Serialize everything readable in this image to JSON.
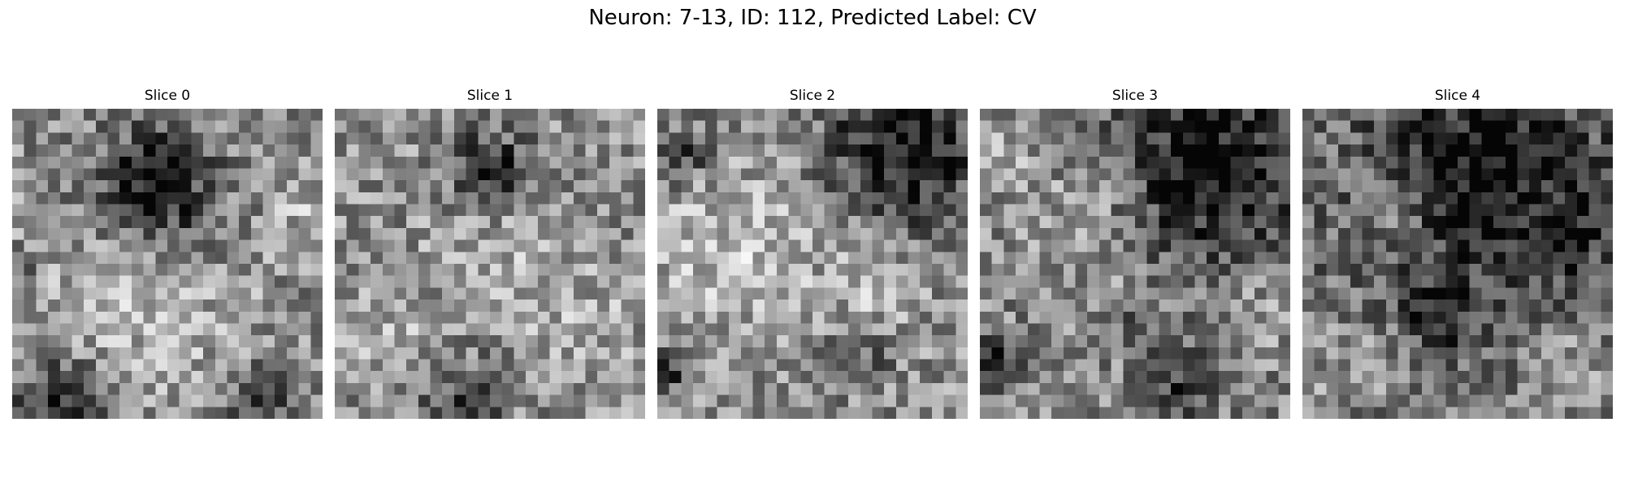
{
  "figure": {
    "title": "Neuron: 7-13, ID: 112, Predicted Label: CV"
  },
  "slices": [
    {
      "label": "Slice 0",
      "grid": 26,
      "dark_blobs": [
        [
          0.46,
          0.25,
          0.18,
          0.95
        ],
        [
          0.15,
          0.93,
          0.15,
          0.7
        ],
        [
          0.8,
          0.93,
          0.12,
          0.6
        ],
        [
          0.02,
          0.5,
          0.06,
          0.4
        ]
      ],
      "bright_blobs": [
        [
          0.2,
          0.65,
          0.25,
          0.25
        ],
        [
          0.6,
          0.7,
          0.25,
          0.2
        ],
        [
          0.95,
          0.3,
          0.1,
          0.3
        ]
      ],
      "base": 0.55,
      "seed": 11
    },
    {
      "label": "Slice 1",
      "grid": 26,
      "dark_blobs": [
        [
          0.5,
          0.2,
          0.13,
          0.8
        ],
        [
          0.4,
          0.95,
          0.15,
          0.5
        ]
      ],
      "bright_blobs": [
        [
          0.55,
          0.45,
          0.2,
          0.25
        ],
        [
          0.15,
          0.72,
          0.15,
          0.25
        ],
        [
          0.8,
          0.7,
          0.2,
          0.2
        ]
      ],
      "base": 0.56,
      "seed": 23
    },
    {
      "label": "Slice 2",
      "grid": 26,
      "dark_blobs": [
        [
          0.8,
          0.12,
          0.25,
          0.9
        ],
        [
          0.08,
          0.15,
          0.1,
          0.6
        ],
        [
          0.03,
          0.85,
          0.06,
          0.7
        ],
        [
          0.65,
          0.8,
          0.1,
          0.4
        ]
      ],
      "bright_blobs": [
        [
          0.25,
          0.45,
          0.3,
          0.35
        ],
        [
          0.7,
          0.6,
          0.15,
          0.25
        ]
      ],
      "base": 0.55,
      "seed": 37
    },
    {
      "label": "Slice 3",
      "grid": 26,
      "dark_blobs": [
        [
          0.75,
          0.2,
          0.3,
          0.9
        ],
        [
          0.03,
          0.82,
          0.08,
          0.7
        ],
        [
          0.5,
          0.72,
          0.06,
          0.5
        ],
        [
          0.65,
          0.9,
          0.12,
          0.5
        ]
      ],
      "bright_blobs": [
        [
          0.05,
          0.15,
          0.1,
          0.35
        ],
        [
          0.35,
          0.38,
          0.2,
          0.3
        ],
        [
          0.9,
          0.65,
          0.12,
          0.25
        ]
      ],
      "base": 0.52,
      "seed": 53
    },
    {
      "label": "Slice 4",
      "grid": 26,
      "dark_blobs": [
        [
          0.6,
          0.2,
          0.35,
          0.75
        ],
        [
          0.45,
          0.65,
          0.12,
          0.55
        ],
        [
          0.85,
          0.45,
          0.1,
          0.5
        ]
      ],
      "bright_blobs": [
        [
          0.3,
          0.35,
          0.12,
          0.3
        ],
        [
          0.15,
          0.85,
          0.15,
          0.3
        ],
        [
          0.85,
          0.85,
          0.15,
          0.3
        ]
      ],
      "base": 0.45,
      "seed": 71
    }
  ]
}
